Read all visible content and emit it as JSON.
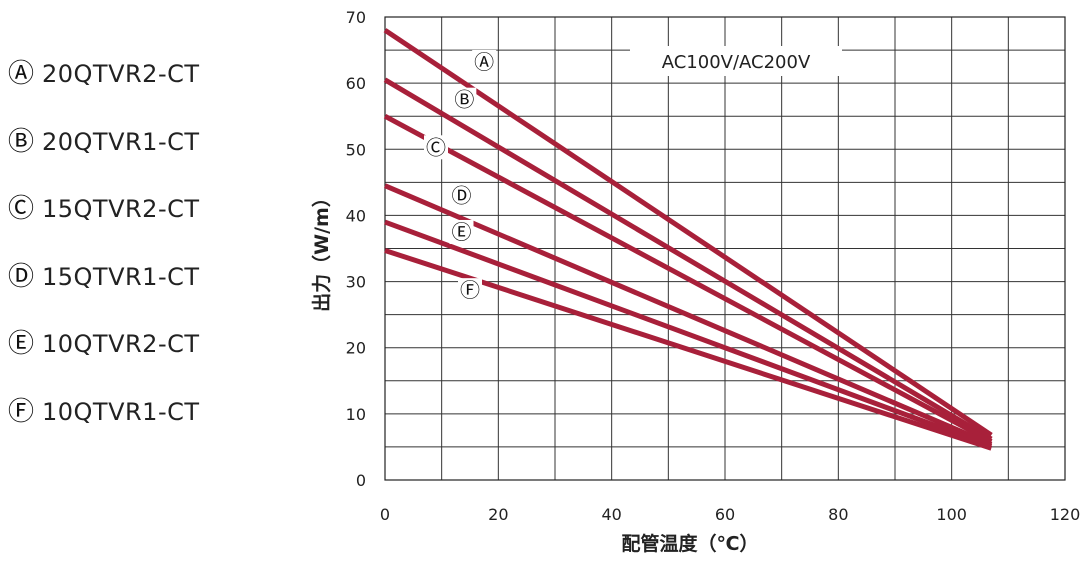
{
  "legend": [
    {
      "marker": "Ⓐ",
      "label": "20QTVR2-CT"
    },
    {
      "marker": "Ⓑ",
      "label": "20QTVR1-CT"
    },
    {
      "marker": "Ⓒ",
      "label": "15QTVR2-CT"
    },
    {
      "marker": "Ⓓ",
      "label": "15QTVR1-CT"
    },
    {
      "marker": "Ⓔ",
      "label": "10QTVR2-CT"
    },
    {
      "marker": "Ⓕ",
      "label": "10QTVR1-CT"
    }
  ],
  "chart_data": {
    "type": "line",
    "title": "",
    "annotation": "AC100V/AC200V",
    "xlabel": "配管温度（℃）",
    "ylabel": "出力（W/m）",
    "xlim": [
      0,
      120
    ],
    "ylim": [
      0,
      70
    ],
    "xticks": [
      0,
      20,
      40,
      60,
      80,
      100,
      120
    ],
    "yticks": [
      0,
      10,
      20,
      30,
      40,
      50,
      60,
      70
    ],
    "grid": true,
    "line_color": "#a8203a",
    "series": [
      {
        "name": "Ⓐ",
        "marker_label": "Ⓐ",
        "label_at": [
          17.5,
          63.2
        ],
        "x": [
          0,
          107
        ],
        "y": [
          68.0,
          6.8
        ]
      },
      {
        "name": "Ⓑ",
        "marker_label": "Ⓑ",
        "label_at": [
          14,
          57.5
        ],
        "x": [
          0,
          107
        ],
        "y": [
          60.5,
          6.2
        ]
      },
      {
        "name": "Ⓒ",
        "marker_label": "Ⓒ",
        "label_at": [
          9,
          50.3
        ],
        "x": [
          0,
          107
        ],
        "y": [
          55.0,
          5.8
        ]
      },
      {
        "name": "Ⓓ",
        "marker_label": "Ⓓ",
        "label_at": [
          13.5,
          43.0
        ],
        "x": [
          0,
          107
        ],
        "y": [
          44.5,
          5.4
        ]
      },
      {
        "name": "Ⓔ",
        "marker_label": "Ⓔ",
        "label_at": [
          13.5,
          37.5
        ],
        "x": [
          0,
          107
        ],
        "y": [
          39.0,
          5.1
        ]
      },
      {
        "name": "Ⓕ",
        "marker_label": "Ⓕ",
        "label_at": [
          15,
          28.7
        ],
        "x": [
          0,
          107
        ],
        "y": [
          34.7,
          4.8
        ]
      }
    ]
  }
}
